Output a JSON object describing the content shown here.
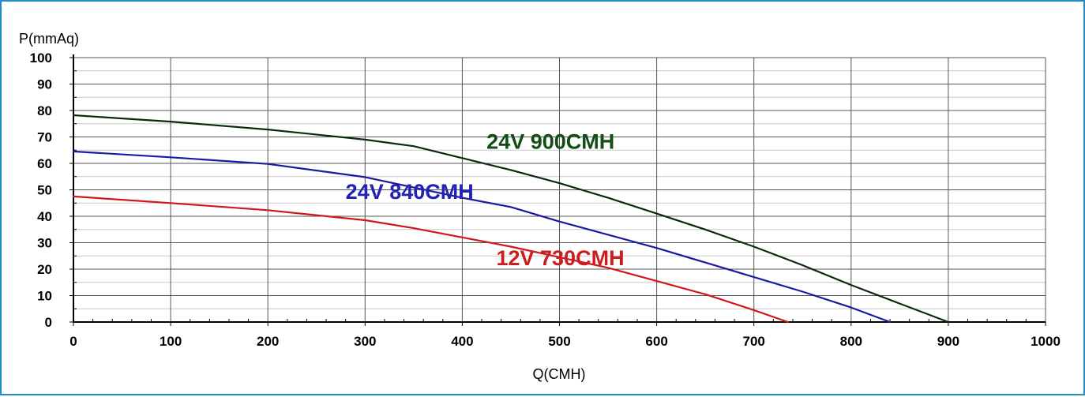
{
  "chart_data": {
    "type": "line",
    "title": "",
    "xlabel": "Q(CMH)",
    "ylabel": "P(mmAq)",
    "xlim": [
      0,
      1000
    ],
    "ylim": [
      0,
      100
    ],
    "x_ticks": [
      0,
      100,
      200,
      300,
      400,
      500,
      600,
      700,
      800,
      900,
      1000
    ],
    "y_ticks": [
      0,
      10,
      20,
      30,
      40,
      50,
      60,
      70,
      80,
      90,
      100
    ],
    "x_ticks_text": [
      "0",
      "100",
      "200",
      "300",
      "400",
      "500",
      "600",
      "700",
      "800",
      "900",
      "1000"
    ],
    "y_ticks_text": [
      "0",
      "10",
      "20",
      "30",
      "40",
      "50",
      "60",
      "70",
      "80",
      "90",
      "100"
    ],
    "grid": true,
    "legend": "none",
    "series": [
      {
        "name": "24V 900CMH",
        "color": "#0b2b0b",
        "label_color": "#134d13",
        "points": [
          [
            0,
            78.2
          ],
          [
            100,
            75.8
          ],
          [
            200,
            72.8
          ],
          [
            300,
            69.0
          ],
          [
            350,
            66.5
          ],
          [
            400,
            62.0
          ],
          [
            450,
            57.5
          ],
          [
            500,
            52.5
          ],
          [
            550,
            47.0
          ],
          [
            600,
            41.0
          ],
          [
            650,
            35.0
          ],
          [
            700,
            28.5
          ],
          [
            750,
            21.5
          ],
          [
            800,
            14.0
          ],
          [
            850,
            7.0
          ],
          [
            900,
            0
          ]
        ]
      },
      {
        "name": "24V 840CMH",
        "color": "#1a1aa0",
        "label_color": "#2222b4",
        "points": [
          [
            0,
            64.5
          ],
          [
            100,
            62.3
          ],
          [
            200,
            59.8
          ],
          [
            300,
            54.8
          ],
          [
            400,
            47.0
          ],
          [
            450,
            43.5
          ],
          [
            500,
            38.0
          ],
          [
            550,
            33.0
          ],
          [
            600,
            28.0
          ],
          [
            650,
            22.5
          ],
          [
            700,
            17.0
          ],
          [
            750,
            11.5
          ],
          [
            800,
            5.5
          ],
          [
            840,
            0
          ]
        ]
      },
      {
        "name": "12V 730CMH",
        "color": "#d0161e",
        "label_color": "#cc1e1e",
        "points": [
          [
            0,
            47.5
          ],
          [
            100,
            45.0
          ],
          [
            200,
            42.3
          ],
          [
            300,
            38.5
          ],
          [
            350,
            35.5
          ],
          [
            400,
            32.0
          ],
          [
            450,
            28.5
          ],
          [
            500,
            24.5
          ],
          [
            550,
            20.5
          ],
          [
            600,
            15.5
          ],
          [
            650,
            10.5
          ],
          [
            700,
            4.5
          ],
          [
            735,
            0
          ]
        ]
      }
    ],
    "annotations": [
      {
        "text": "24V 900CMH",
        "series": 0,
        "x": 425,
        "y": 65.5
      },
      {
        "text": "24V 840CMH",
        "series": 1,
        "x": 280,
        "y": 46.5
      },
      {
        "text": "12V 730CMH",
        "series": 2,
        "x": 435,
        "y": 21.5
      }
    ]
  }
}
